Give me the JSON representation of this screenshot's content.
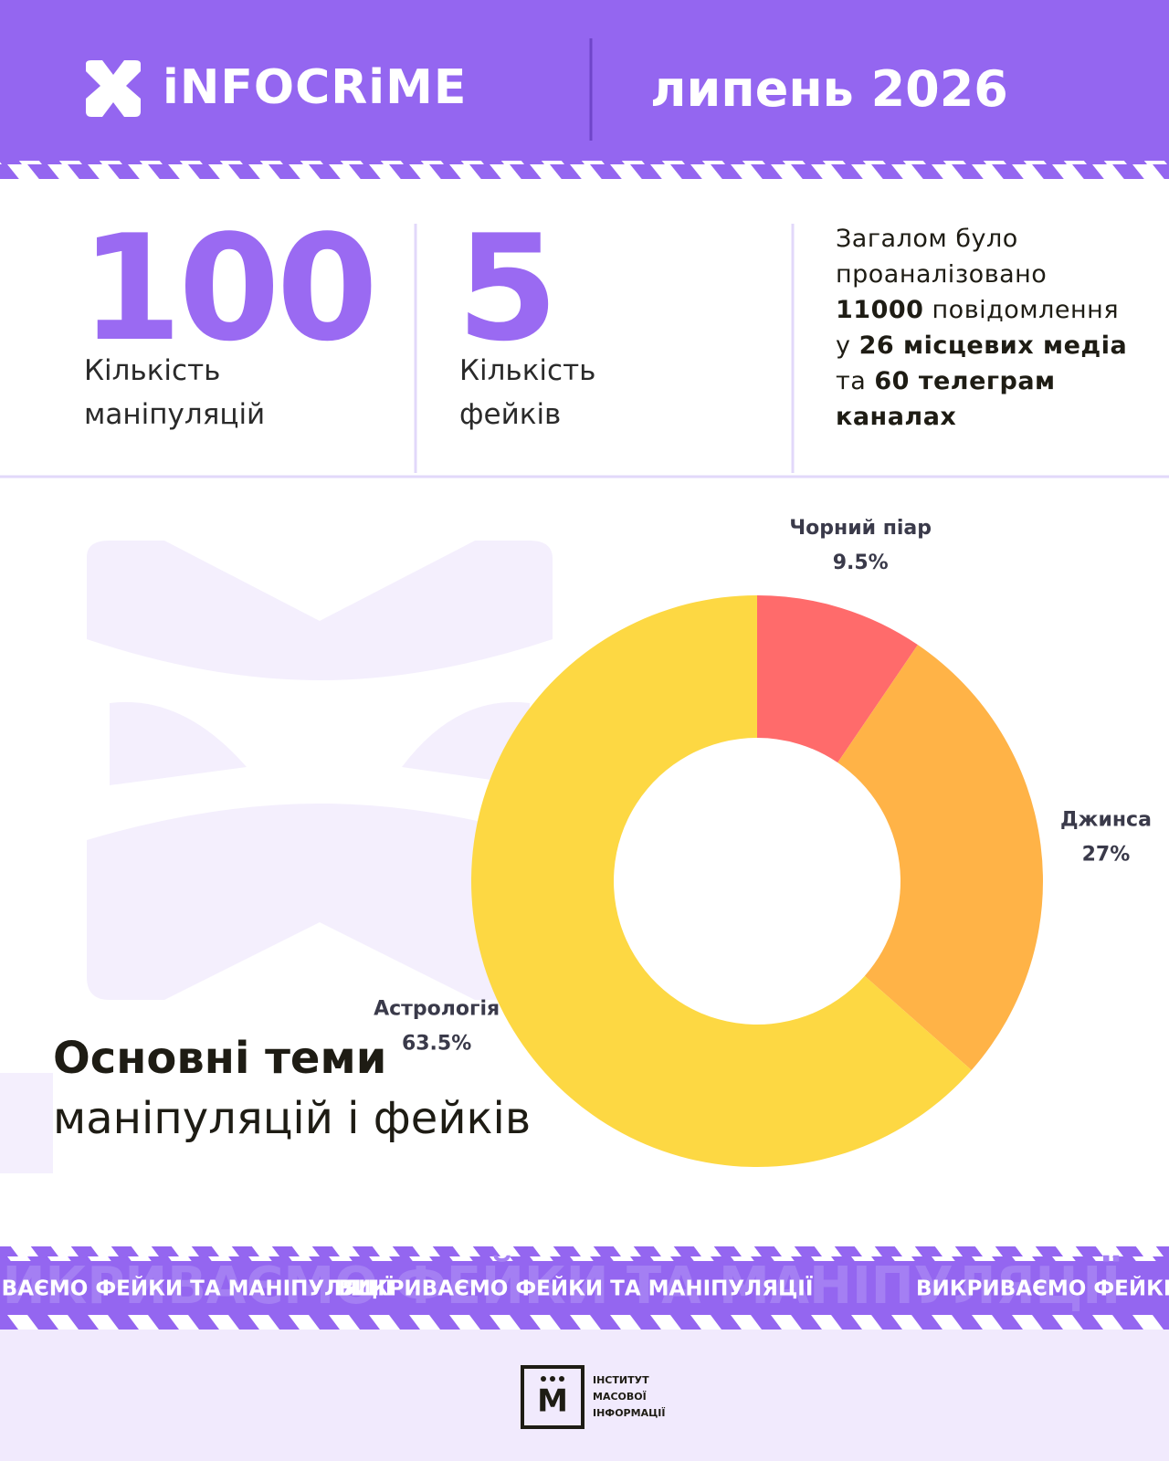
{
  "header": {
    "logo": "iNFOCRiME",
    "date": "липень 2026"
  },
  "stats": [
    {
      "value": "100",
      "label": "Кількість маніпуляцій"
    },
    {
      "value": "5",
      "label": "Кількість фейків"
    }
  ],
  "summary": [
    "Загалом було проаналізовано ",
    "11000",
    " повідомлення у ",
    "26 місцевих медіа",
    " та ",
    "60 телеграм каналах"
  ],
  "chart_data": {
    "type": "donut",
    "title": [
      "Основні теми",
      "маніпуляцій і фейків"
    ],
    "categories": [
      "Чорний піар",
      "Джинса",
      "Астрологія"
    ],
    "values": [
      9.5,
      27,
      63.5
    ],
    "value_labels": [
      "9.5%",
      "27%",
      "63.5%"
    ],
    "colors": [
      "#ff6b6b",
      "#ffb347",
      "#fdd843"
    ]
  },
  "ticker": "ВИКРИВАЄМО ФЕЙКИ ТА МАНІПУЛЯЦІЇ",
  "footer": {
    "mark": "М",
    "org": [
      "ІНСТИТУТ",
      "МАСОВОЇ",
      "ІНФОРМАЦІЇ"
    ]
  }
}
